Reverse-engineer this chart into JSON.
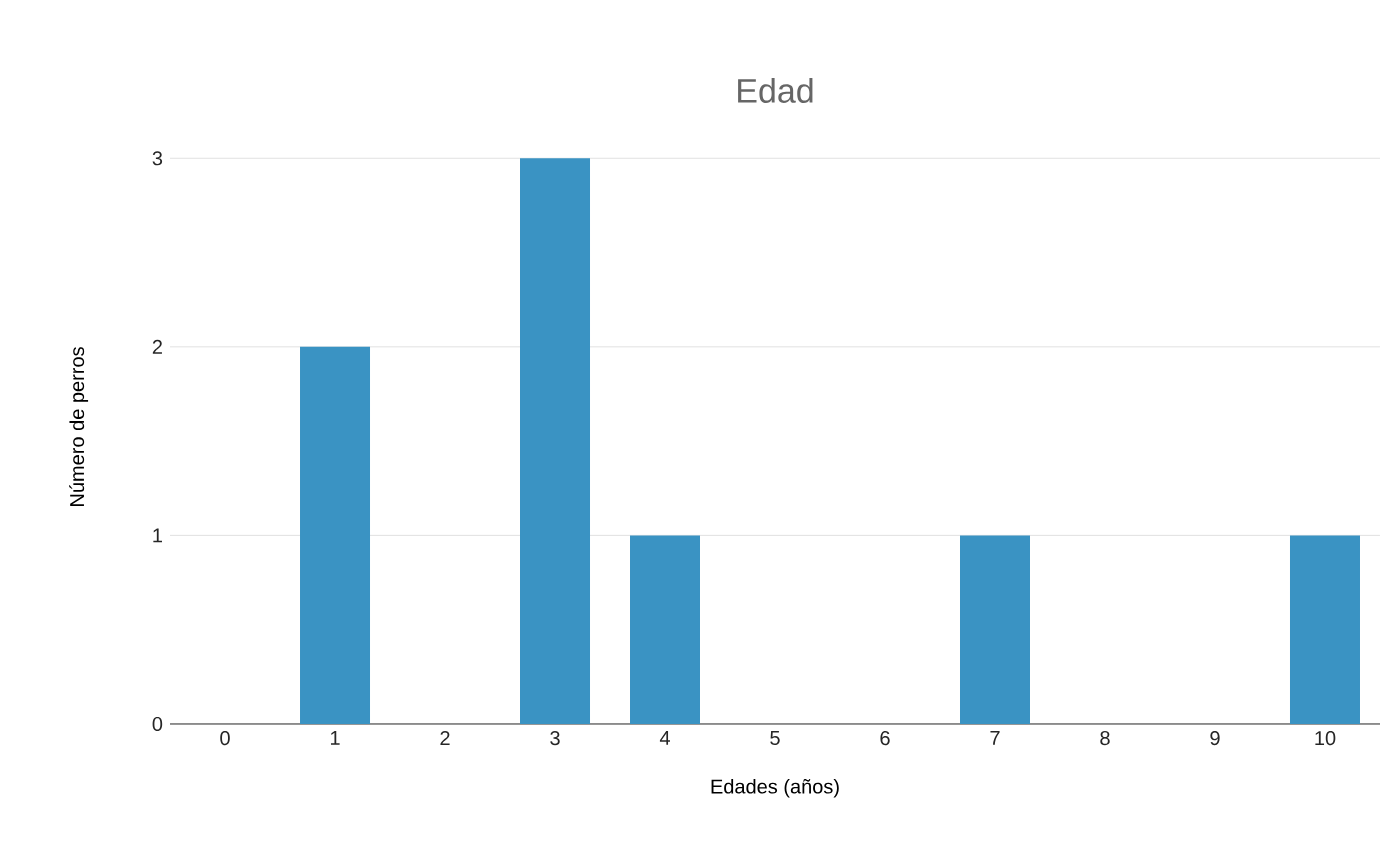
{
  "chart_data": {
    "type": "bar",
    "title": "Edad",
    "xlabel": "Edades (años)",
    "ylabel": "Número de perros",
    "categories": [
      "0",
      "1",
      "2",
      "3",
      "4",
      "5",
      "6",
      "7",
      "8",
      "9",
      "10"
    ],
    "values": [
      0,
      2,
      0,
      3,
      1,
      0,
      0,
      1,
      0,
      0,
      1
    ],
    "color": "#3a93c3",
    "ylim": [
      0,
      3
    ],
    "yticks": [
      0,
      1,
      2,
      3
    ],
    "grid": "y"
  }
}
